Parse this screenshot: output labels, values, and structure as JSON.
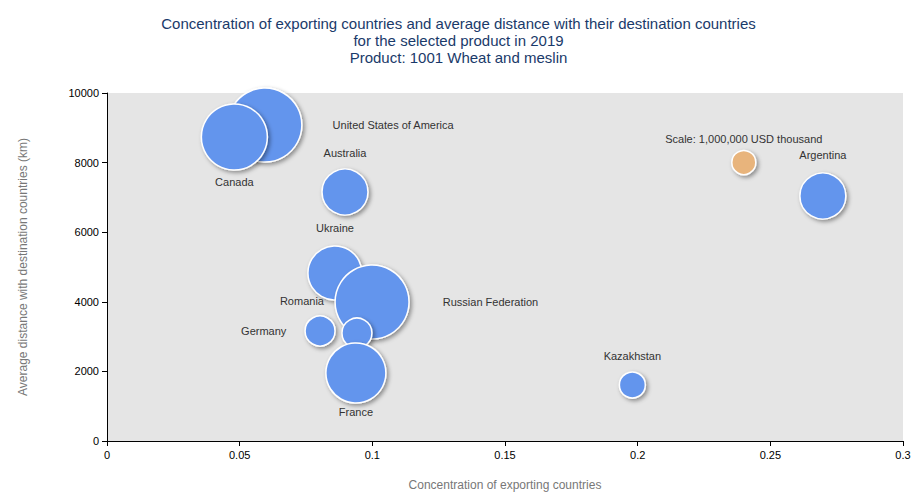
{
  "chart_data": {
    "type": "scatter",
    "title": "Concentration of exporting countries and average distance with their destination countries\nfor the selected product in 2019\nProduct: 1001 Wheat and meslin",
    "x_label": "Concentration of exporting countries",
    "y_label": "Average distance with destination countries (km)",
    "labels": [
      "United States of America",
      "Canada",
      "Australia",
      "Ukraine",
      "Russian Federation",
      "Romania",
      "Germany",
      "France",
      "Kazakhstan",
      "Argentina"
    ],
    "x": [
      0.0595,
      0.048,
      0.0897,
      0.0859,
      0.0999,
      0.0942,
      0.0803,
      0.0938,
      0.198,
      0.2698
    ],
    "y": [
      9080,
      8736,
      7155,
      4828,
      3994,
      3103,
      3161,
      1954,
      1609,
      7040
    ],
    "sizes": [
      9500000,
      7560000,
      3670000,
      5060000,
      9500000,
      1560000,
      1560000,
      6250000,
      1170000,
      3670000
    ],
    "color": "#6495ed",
    "scale": {
      "label": "Scale: 1,000,000 USD thousand",
      "value": 1000000,
      "color": "#e8b47c"
    },
    "xlim": [
      0,
      0.3
    ],
    "xticks": [
      0,
      0.05,
      0.1,
      0.15,
      0.2,
      0.25,
      0.3
    ],
    "ylim": [
      0,
      10000
    ],
    "yticks": [
      0,
      2000,
      4000,
      6000,
      8000,
      10000
    ],
    "grid": false
  }
}
